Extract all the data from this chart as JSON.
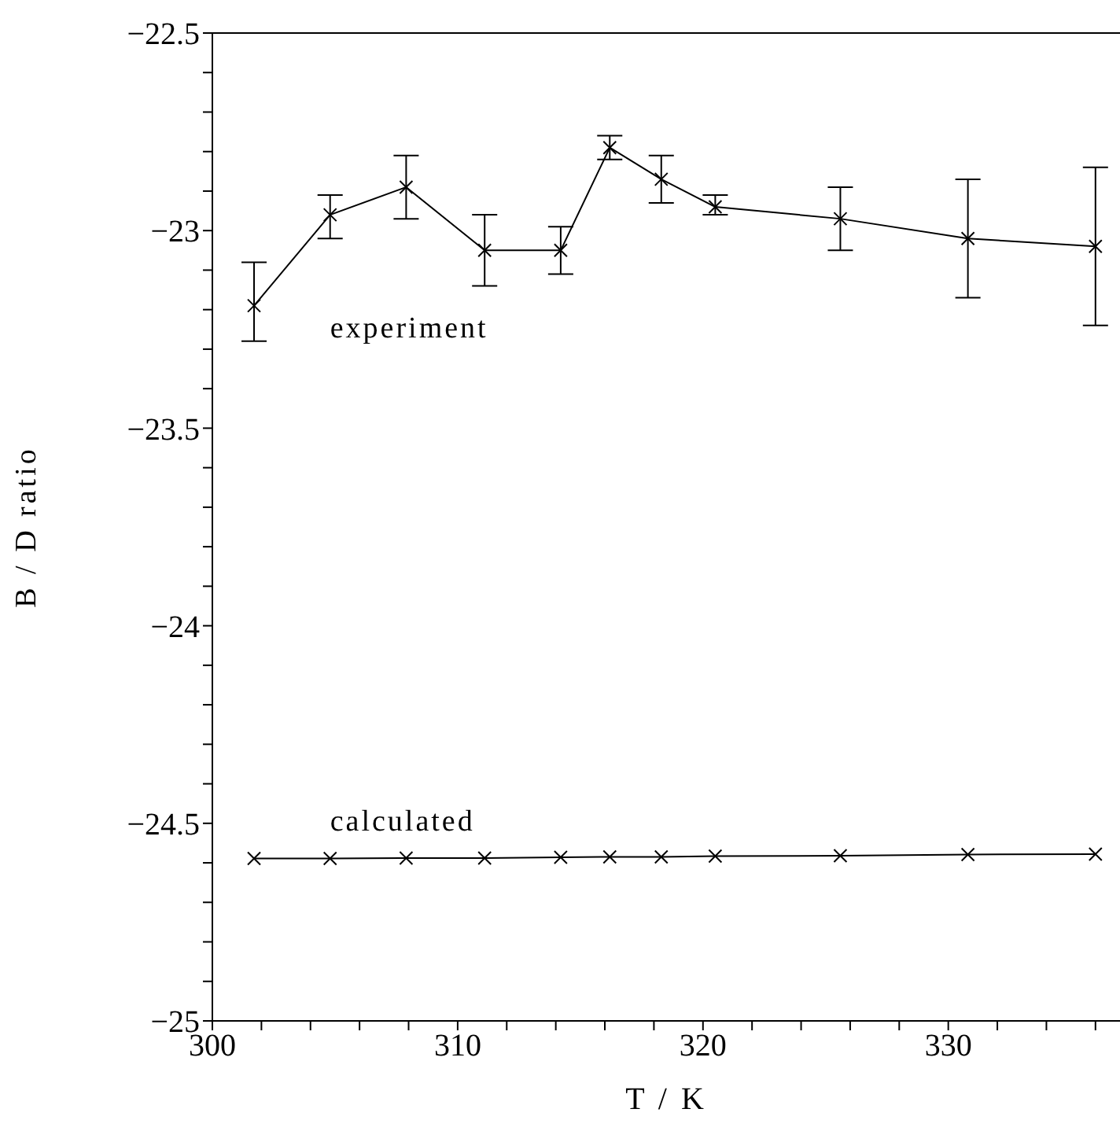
{
  "chart_data": {
    "type": "line",
    "xlabel": "T / K",
    "ylabel": "B / D ratio",
    "x": [
      301.7,
      304.8,
      307.9,
      311.1,
      314.2,
      316.2,
      318.3,
      320.5,
      325.6,
      330.8,
      336.0
    ],
    "series": [
      {
        "name": "experiment",
        "color": "#000000",
        "values": [
          -23.19,
          -22.96,
          -22.89,
          -23.05,
          -23.05,
          -22.79,
          -22.87,
          -22.94,
          -22.97,
          -23.02,
          -23.04
        ],
        "errors": [
          [
            -23.28,
            -23.08
          ],
          [
            -23.02,
            -22.91
          ],
          [
            -22.97,
            -22.81
          ],
          [
            -23.14,
            -22.96
          ],
          [
            -23.11,
            -22.99
          ],
          [
            -22.82,
            -22.76
          ],
          [
            -22.93,
            -22.81
          ],
          [
            -22.96,
            -22.91
          ],
          [
            -23.05,
            -22.89
          ],
          [
            -23.17,
            -22.87
          ],
          [
            -23.24,
            -22.84
          ]
        ]
      },
      {
        "name": "calculated",
        "color": "#000000",
        "values": [
          -24.589,
          -24.589,
          -24.588,
          -24.588,
          -24.586,
          -24.585,
          -24.585,
          -24.583,
          -24.582,
          -24.579,
          -24.578
        ]
      }
    ],
    "xlim": [
      300,
      337
    ],
    "xticks": [
      300,
      {
        "value": 302,
        "label": null
      },
      {
        "value": 304,
        "label": null
      },
      {
        "value": 306,
        "label": null
      },
      {
        "value": 308,
        "label": null
      },
      310,
      {
        "value": 312,
        "label": null
      },
      {
        "value": 314,
        "label": null
      },
      {
        "value": 316,
        "label": null
      },
      {
        "value": 318,
        "label": null
      },
      320,
      {
        "value": 322,
        "label": null
      },
      {
        "value": 324,
        "label": null
      },
      {
        "value": 326,
        "label": null
      },
      {
        "value": 328,
        "label": null
      },
      330,
      {
        "value": 332,
        "label": null
      },
      {
        "value": 334,
        "label": null
      },
      {
        "value": 336,
        "label": null
      }
    ],
    "ylim": [
      -25,
      -22.5
    ],
    "yticks": [
      -25,
      {
        "value": -24.9,
        "label": null
      },
      {
        "value": -24.8,
        "label": null
      },
      {
        "value": -24.7,
        "label": null
      },
      {
        "value": -24.6,
        "label": null
      },
      -24.5,
      {
        "value": -24.4,
        "label": null
      },
      {
        "value": -24.3,
        "label": null
      },
      {
        "value": -24.2,
        "label": null
      },
      {
        "value": -24.1,
        "label": null
      },
      -24,
      {
        "value": -23.9,
        "label": null
      },
      {
        "value": -23.8,
        "label": null
      },
      {
        "value": -23.7,
        "label": null
      },
      {
        "value": -23.6,
        "label": null
      },
      -23.5,
      {
        "value": -23.4,
        "label": null
      },
      {
        "value": -23.3,
        "label": null
      },
      {
        "value": -23.2,
        "label": null
      },
      {
        "value": -23.1,
        "label": null
      },
      -23,
      {
        "value": -22.9,
        "label": null
      },
      {
        "value": -22.8,
        "label": null
      },
      {
        "value": -22.7,
        "label": null
      },
      {
        "value": -22.6,
        "label": null
      },
      -22.5
    ],
    "marker": "cross",
    "line_style": "solid",
    "grid": false
  }
}
